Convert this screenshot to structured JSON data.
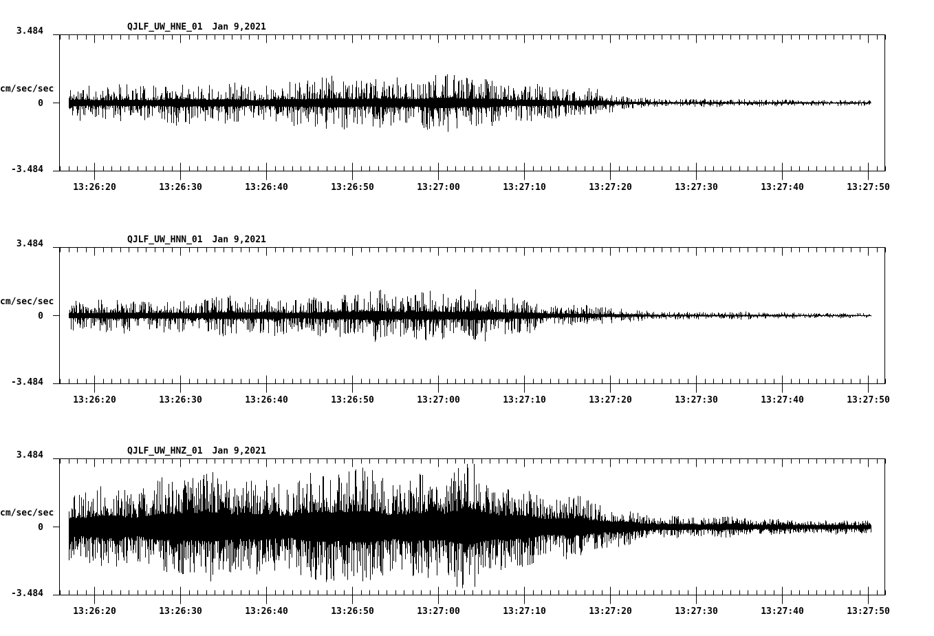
{
  "background": "#ffffff",
  "ink_color": "#000000",
  "chart_data": [
    {
      "type": "line",
      "chart_kind": "seismogram",
      "station": "QJLF_UW_HNE_01",
      "date": "Jan 9,2021",
      "ylabel": "cm/sec/sec",
      "ylim": [
        -3.484,
        3.484
      ],
      "ytick_labels": [
        "3.484",
        "0",
        "-3.484"
      ],
      "ytick_values": [
        3.484,
        0,
        -3.484
      ],
      "xticks": [
        {
          "t": 20,
          "label": "13:26:20"
        },
        {
          "t": 30,
          "label": "13:26:30"
        },
        {
          "t": 40,
          "label": "13:26:40"
        },
        {
          "t": 50,
          "label": "13:26:50"
        },
        {
          "t": 60,
          "label": "13:27:00"
        },
        {
          "t": 70,
          "label": "13:27:10"
        },
        {
          "t": 80,
          "label": "13:27:20"
        },
        {
          "t": 90,
          "label": "13:27:30"
        },
        {
          "t": 100,
          "label": "13:27:40"
        },
        {
          "t": 110,
          "label": "13:27:50"
        }
      ],
      "minor_tick_interval_sec": 1,
      "axis_time_range_sec": [
        15.92,
        112.0
      ],
      "signal_start_sec": 17.0,
      "signal_end_sec": 110.3,
      "envelope_cm_s2": [
        [
          17,
          0.95
        ],
        [
          20,
          1.05
        ],
        [
          24,
          1.2
        ],
        [
          28,
          1.25
        ],
        [
          30,
          1.3
        ],
        [
          33,
          1.2
        ],
        [
          36,
          1.25
        ],
        [
          40,
          1.3
        ],
        [
          44,
          1.4
        ],
        [
          48,
          1.45
        ],
        [
          52,
          1.55
        ],
        [
          55,
          1.65
        ],
        [
          58,
          1.6
        ],
        [
          60,
          1.65
        ],
        [
          63,
          1.6
        ],
        [
          66,
          1.45
        ],
        [
          68,
          1.3
        ],
        [
          70,
          1.35
        ],
        [
          71,
          1.2
        ],
        [
          73,
          1.0
        ],
        [
          75,
          0.85
        ],
        [
          77,
          0.8
        ],
        [
          79,
          0.75
        ],
        [
          81,
          0.5
        ],
        [
          83,
          0.35
        ],
        [
          85,
          0.3
        ],
        [
          88,
          0.26
        ],
        [
          92,
          0.24
        ],
        [
          96,
          0.22
        ],
        [
          99,
          0.26
        ],
        [
          102,
          0.2
        ],
        [
          106,
          0.18
        ],
        [
          110.3,
          0.16
        ]
      ]
    },
    {
      "type": "line",
      "chart_kind": "seismogram",
      "station": "QJLF_UW_HNN_01",
      "date": "Jan 9,2021",
      "ylabel": "cm/sec/sec",
      "ylim": [
        -3.484,
        3.484
      ],
      "ytick_labels": [
        "3.484",
        "0",
        "-3.484"
      ],
      "ytick_values": [
        3.484,
        0,
        -3.484
      ],
      "xticks": [
        {
          "t": 20,
          "label": "13:26:20"
        },
        {
          "t": 30,
          "label": "13:26:30"
        },
        {
          "t": 40,
          "label": "13:26:40"
        },
        {
          "t": 50,
          "label": "13:26:50"
        },
        {
          "t": 60,
          "label": "13:27:00"
        },
        {
          "t": 70,
          "label": "13:27:10"
        },
        {
          "t": 80,
          "label": "13:27:20"
        },
        {
          "t": 90,
          "label": "13:27:30"
        },
        {
          "t": 100,
          "label": "13:27:40"
        },
        {
          "t": 110,
          "label": "13:27:50"
        }
      ],
      "minor_tick_interval_sec": 1,
      "axis_time_range_sec": [
        15.92,
        112.0
      ],
      "signal_start_sec": 17.0,
      "signal_end_sec": 110.3,
      "envelope_cm_s2": [
        [
          17,
          0.9
        ],
        [
          20,
          0.95
        ],
        [
          24,
          1.0
        ],
        [
          28,
          1.1
        ],
        [
          32,
          1.05
        ],
        [
          36,
          1.1
        ],
        [
          40,
          1.15
        ],
        [
          44,
          1.2
        ],
        [
          48,
          1.3
        ],
        [
          52,
          1.4
        ],
        [
          55,
          1.5
        ],
        [
          58,
          1.55
        ],
        [
          61,
          1.6
        ],
        [
          64,
          1.45
        ],
        [
          66,
          1.3
        ],
        [
          68,
          1.2
        ],
        [
          70,
          1.1
        ],
        [
          72,
          0.95
        ],
        [
          74,
          0.8
        ],
        [
          76,
          0.7
        ],
        [
          78,
          0.6
        ],
        [
          80,
          0.5
        ],
        [
          82,
          0.4
        ],
        [
          84,
          0.3
        ],
        [
          87,
          0.26
        ],
        [
          90,
          0.24
        ],
        [
          94,
          0.22
        ],
        [
          98,
          0.2
        ],
        [
          102,
          0.19
        ],
        [
          106,
          0.17
        ],
        [
          110.3,
          0.15
        ]
      ]
    },
    {
      "type": "line",
      "chart_kind": "seismogram",
      "station": "QJLF_UW_HNZ_01",
      "date": "Jan 9,2021",
      "ylabel": "cm/sec/sec",
      "ylim": [
        -3.484,
        3.484
      ],
      "ytick_labels": [
        "3.484",
        "0",
        "-3.484"
      ],
      "ytick_values": [
        3.484,
        0,
        -3.484
      ],
      "xticks": [
        {
          "t": 20,
          "label": "13:26:20"
        },
        {
          "t": 30,
          "label": "13:26:30"
        },
        {
          "t": 40,
          "label": "13:26:40"
        },
        {
          "t": 50,
          "label": "13:26:50"
        },
        {
          "t": 60,
          "label": "13:27:00"
        },
        {
          "t": 70,
          "label": "13:27:10"
        },
        {
          "t": 80,
          "label": "13:27:20"
        },
        {
          "t": 90,
          "label": "13:27:30"
        },
        {
          "t": 100,
          "label": "13:27:40"
        },
        {
          "t": 110,
          "label": "13:27:50"
        }
      ],
      "minor_tick_interval_sec": 1,
      "axis_time_range_sec": [
        15.92,
        112.0
      ],
      "signal_start_sec": 17.0,
      "signal_end_sec": 110.3,
      "envelope_cm_s2": [
        [
          17,
          1.9
        ],
        [
          19,
          2.1
        ],
        [
          22,
          2.4
        ],
        [
          25,
          2.6
        ],
        [
          28,
          3.0
        ],
        [
          30,
          3.35
        ],
        [
          32,
          2.9
        ],
        [
          34,
          2.8
        ],
        [
          37,
          3.0
        ],
        [
          40,
          2.9
        ],
        [
          43,
          3.1
        ],
        [
          46,
          3.0
        ],
        [
          49,
          3.3
        ],
        [
          52,
          3.2
        ],
        [
          55,
          3.35
        ],
        [
          57,
          3.1
        ],
        [
          60,
          3.2
        ],
        [
          62,
          3.4
        ],
        [
          64,
          3.3
        ],
        [
          66,
          3.0
        ],
        [
          68,
          2.8
        ],
        [
          70,
          2.6
        ],
        [
          72,
          2.3
        ],
        [
          74,
          2.0
        ],
        [
          76,
          1.7
        ],
        [
          78,
          1.45
        ],
        [
          80,
          1.2
        ],
        [
          82,
          1.0
        ],
        [
          84,
          0.85
        ],
        [
          86,
          0.75
        ],
        [
          88,
          0.65
        ],
        [
          91,
          0.6
        ],
        [
          94,
          0.55
        ],
        [
          97,
          0.5
        ],
        [
          100,
          0.5
        ],
        [
          103,
          0.45
        ],
        [
          106,
          0.42
        ],
        [
          110.3,
          0.38
        ]
      ]
    }
  ]
}
